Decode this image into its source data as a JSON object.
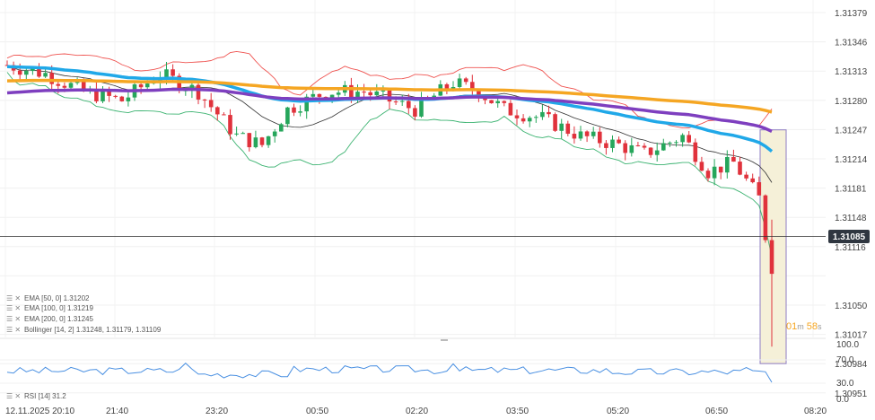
{
  "chart_data": {
    "type": "candlestick",
    "y_axis_ticks": [
      "1.31379",
      "1.31346",
      "1.31313",
      "1.31280",
      "1.31247",
      "1.31214",
      "1.31181",
      "1.31148",
      "1.31116",
      "1.31085",
      "1.31050",
      "1.31017",
      "1.30984",
      "1.30951"
    ],
    "ylim": [
      1.30951,
      1.31379
    ],
    "x_axis_ticks": [
      "12.11.2025  20:10",
      "21:40",
      "23:20",
      "00:50",
      "02:20",
      "03:50",
      "05:20",
      "06:50",
      "08:20"
    ],
    "current_price": "1.31085",
    "countdown": {
      "minutes": "01",
      "m": "m",
      "seconds": "58",
      "s": "s"
    },
    "legend": {
      "ema50": "EMA [50, 0]  1.31202",
      "ema100": "EMA [100, 0]  1.31219",
      "ema200": "EMA [200, 0]  1.31245",
      "bollinger": "Bollinger  [14, 2]  1.31248,  1.31179,  1.31109",
      "rsi": "RSI [14]  31.2"
    },
    "rsi_axis_ticks": [
      "100.0",
      "70.0",
      "30.0",
      "0.0"
    ],
    "rsi_value": 31.2,
    "colors": {
      "up": "#26a65b",
      "down": "#e0323c",
      "ema50": "#20a8e8",
      "ema100": "#7e3fbf",
      "ema200": "#f5a623",
      "bb_upper": "#ef5350",
      "bb_lower": "#3cb371",
      "bb_mid": "#333333",
      "rsi": "#4a90e2",
      "price_line": "#333333",
      "price_box": "#2f3640",
      "highlight": "#f5f0d8",
      "countdown": "#f5a623"
    }
  }
}
